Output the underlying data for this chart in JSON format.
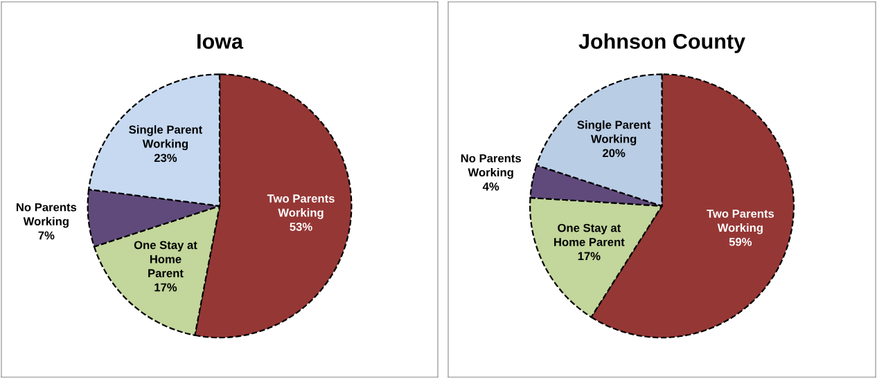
{
  "chart_data": [
    {
      "type": "pie",
      "title": "Iowa",
      "categories": [
        "Two Parents\nWorking",
        "One Stay at\nHome\nParent",
        "No Parents\nWorking",
        "Single Parent\nWorking"
      ],
      "values": [
        53,
        17,
        7,
        23
      ],
      "value_labels": [
        "53%",
        "17%",
        "7%",
        "23%"
      ],
      "colors": [
        "#953735",
        "#c3d69b",
        "#604a7b",
        "#c6d9f1"
      ],
      "line_style": "dashed",
      "legend": false
    },
    {
      "type": "pie",
      "title": "Johnson County",
      "categories": [
        "Two Parents\nWorking",
        "One Stay at\nHome Parent",
        "No Parents\nWorking",
        "Single Parent\nWorking"
      ],
      "values": [
        59,
        17,
        4,
        20
      ],
      "value_labels": [
        "59%",
        "17%",
        "4%",
        "20%"
      ],
      "colors": [
        "#953735",
        "#c3d69b",
        "#604a7b",
        "#b9cde5"
      ],
      "line_style": "dashed",
      "legend": false
    }
  ]
}
